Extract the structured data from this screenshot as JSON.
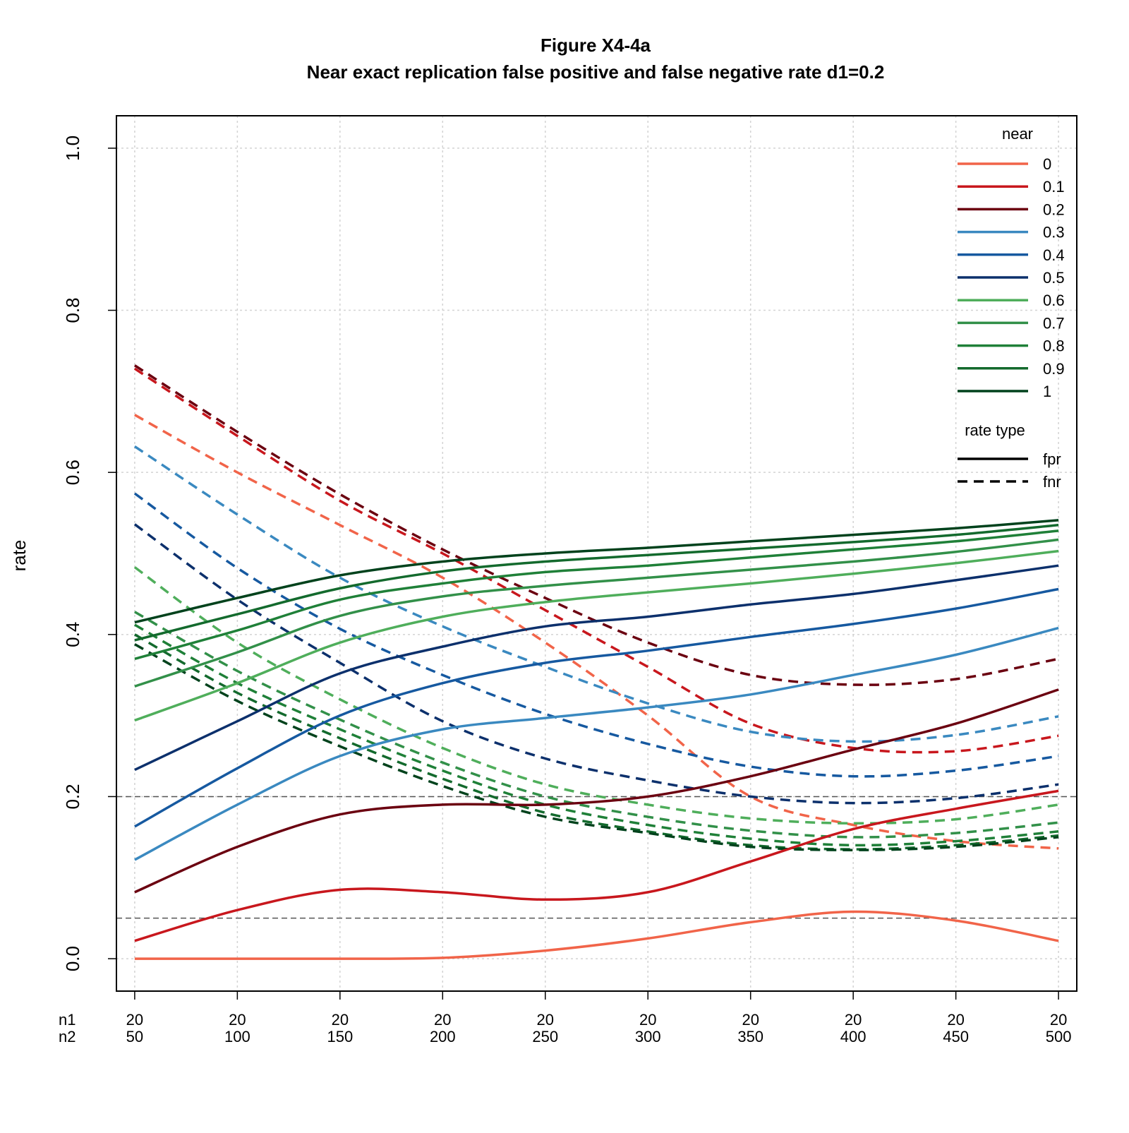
{
  "chart_data": {
    "type": "line",
    "title": "Figure X4-4a",
    "subtitle": "Near exact replication false positive and false negative rate d1=0.2",
    "ylabel": "rate",
    "xlabel": "",
    "ylim": [
      -0.04,
      1.04
    ],
    "y_ticks": [
      "0.0",
      "0.2",
      "0.4",
      "0.6",
      "0.8",
      "1.0"
    ],
    "x_rows": [
      {
        "label": "n1",
        "values": [
          "20",
          "20",
          "20",
          "20",
          "20",
          "20",
          "20",
          "20",
          "20",
          "20"
        ]
      },
      {
        "label": "n2",
        "values": [
          "50",
          "100",
          "150",
          "200",
          "250",
          "300",
          "350",
          "400",
          "450",
          "500"
        ]
      }
    ],
    "x": [
      50,
      100,
      150,
      200,
      250,
      300,
      350,
      400,
      450,
      500
    ],
    "grid": true,
    "reference_lines": [
      0.05,
      0.2
    ],
    "legend": {
      "placement": "top-right",
      "near_title": "near",
      "near_entries": [
        {
          "label": "0",
          "color": "#F16449"
        },
        {
          "label": "0.1",
          "color": "#C8171D"
        },
        {
          "label": "0.2",
          "color": "#6B0010"
        },
        {
          "label": "0.3",
          "color": "#3A89C0"
        },
        {
          "label": "0.4",
          "color": "#1659A0"
        },
        {
          "label": "0.5",
          "color": "#0C306C"
        },
        {
          "label": "0.6",
          "color": "#4FAE5B"
        },
        {
          "label": "0.7",
          "color": "#329049"
        },
        {
          "label": "0.8",
          "color": "#1F8038"
        },
        {
          "label": "0.9",
          "color": "#136A2D"
        },
        {
          "label": "1",
          "color": "#00421C"
        }
      ],
      "type_title": "rate type",
      "type_entries": [
        {
          "label": "fpr",
          "style": "solid"
        },
        {
          "label": "fnr",
          "style": "dashed"
        }
      ]
    },
    "series": [
      {
        "near": "0",
        "type": "fpr",
        "color": "#F16449",
        "values": [
          0.0,
          0.0,
          0.0,
          0.001,
          0.01,
          0.025,
          0.045,
          0.058,
          0.047,
          0.022
        ]
      },
      {
        "near": "0.1",
        "type": "fpr",
        "color": "#C8171D",
        "values": [
          0.022,
          0.06,
          0.085,
          0.082,
          0.073,
          0.082,
          0.12,
          0.16,
          0.185,
          0.207
        ]
      },
      {
        "near": "0.2",
        "type": "fpr",
        "color": "#6B0010",
        "values": [
          0.082,
          0.138,
          0.178,
          0.19,
          0.19,
          0.2,
          0.225,
          0.258,
          0.29,
          0.332
        ]
      },
      {
        "near": "0.3",
        "type": "fpr",
        "color": "#3A89C0",
        "values": [
          0.122,
          0.19,
          0.25,
          0.283,
          0.297,
          0.31,
          0.326,
          0.35,
          0.375,
          0.408
        ]
      },
      {
        "near": "0.4",
        "type": "fpr",
        "color": "#1659A0",
        "values": [
          0.163,
          0.235,
          0.3,
          0.34,
          0.365,
          0.38,
          0.397,
          0.413,
          0.432,
          0.456
        ]
      },
      {
        "near": "0.5",
        "type": "fpr",
        "color": "#0C306C",
        "values": [
          0.233,
          0.293,
          0.352,
          0.385,
          0.41,
          0.422,
          0.437,
          0.45,
          0.467,
          0.485
        ]
      },
      {
        "near": "0.6",
        "type": "fpr",
        "color": "#4FAE5B",
        "values": [
          0.294,
          0.34,
          0.39,
          0.422,
          0.44,
          0.452,
          0.463,
          0.475,
          0.488,
          0.503
        ]
      },
      {
        "near": "0.7",
        "type": "fpr",
        "color": "#329049",
        "values": [
          0.336,
          0.378,
          0.423,
          0.447,
          0.46,
          0.47,
          0.48,
          0.49,
          0.502,
          0.517
        ]
      },
      {
        "near": "0.8",
        "type": "fpr",
        "color": "#1F8038",
        "values": [
          0.37,
          0.405,
          0.443,
          0.463,
          0.477,
          0.485,
          0.495,
          0.505,
          0.515,
          0.528
        ]
      },
      {
        "near": "0.9",
        "type": "fpr",
        "color": "#136A2D",
        "values": [
          0.393,
          0.425,
          0.457,
          0.478,
          0.49,
          0.498,
          0.506,
          0.514,
          0.523,
          0.535
        ]
      },
      {
        "near": "1",
        "type": "fpr",
        "color": "#00421C",
        "values": [
          0.415,
          0.445,
          0.473,
          0.49,
          0.5,
          0.507,
          0.515,
          0.523,
          0.531,
          0.541
        ]
      },
      {
        "near": "0",
        "type": "fnr",
        "color": "#F16449",
        "values": [
          0.671,
          0.6,
          0.535,
          0.47,
          0.39,
          0.3,
          0.2,
          0.165,
          0.145,
          0.136
        ]
      },
      {
        "near": "0.1",
        "type": "fnr",
        "color": "#C8171D",
        "values": [
          0.728,
          0.645,
          0.565,
          0.5,
          0.43,
          0.36,
          0.29,
          0.26,
          0.256,
          0.275
        ]
      },
      {
        "near": "0.2",
        "type": "fnr",
        "color": "#6B0010",
        "values": [
          0.732,
          0.65,
          0.573,
          0.505,
          0.445,
          0.39,
          0.35,
          0.338,
          0.345,
          0.37
        ]
      },
      {
        "near": "0.3",
        "type": "fnr",
        "color": "#3A89C0",
        "values": [
          0.632,
          0.548,
          0.47,
          0.41,
          0.36,
          0.315,
          0.28,
          0.268,
          0.276,
          0.299
        ]
      },
      {
        "near": "0.4",
        "type": "fnr",
        "color": "#1659A0",
        "values": [
          0.574,
          0.482,
          0.407,
          0.35,
          0.302,
          0.265,
          0.237,
          0.225,
          0.232,
          0.25
        ]
      },
      {
        "near": "0.5",
        "type": "fnr",
        "color": "#0C306C",
        "values": [
          0.536,
          0.443,
          0.365,
          0.293,
          0.247,
          0.22,
          0.2,
          0.192,
          0.198,
          0.215
        ]
      },
      {
        "near": "0.6",
        "type": "fnr",
        "color": "#4FAE5B",
        "values": [
          0.483,
          0.39,
          0.32,
          0.26,
          0.215,
          0.19,
          0.173,
          0.167,
          0.172,
          0.19
        ]
      },
      {
        "near": "0.7",
        "type": "fnr",
        "color": "#329049",
        "values": [
          0.428,
          0.355,
          0.295,
          0.242,
          0.2,
          0.175,
          0.158,
          0.15,
          0.155,
          0.168
        ]
      },
      {
        "near": "0.8",
        "type": "fnr",
        "color": "#1F8038",
        "values": [
          0.412,
          0.34,
          0.283,
          0.232,
          0.19,
          0.165,
          0.148,
          0.14,
          0.145,
          0.157
        ]
      },
      {
        "near": "0.9",
        "type": "fnr",
        "color": "#136A2D",
        "values": [
          0.4,
          0.328,
          0.272,
          0.222,
          0.18,
          0.157,
          0.14,
          0.135,
          0.14,
          0.152
        ]
      },
      {
        "near": "1",
        "type": "fnr",
        "color": "#00421C",
        "values": [
          0.388,
          0.318,
          0.262,
          0.213,
          0.175,
          0.155,
          0.138,
          0.134,
          0.138,
          0.15
        ]
      }
    ]
  }
}
